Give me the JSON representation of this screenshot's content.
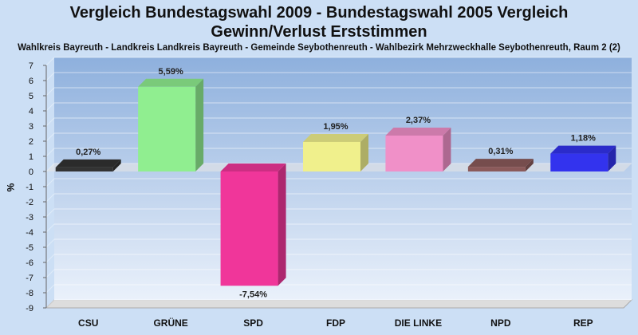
{
  "header": {
    "title_line1": "Vergleich Bundestagswahl 2009 - Bundestagswahl 2005 Vergleich",
    "title_line2": "Gewinn/Verlust Erststimmen",
    "subtitle": "Wahlkreis Bayreuth - Landkreis Landkreis Bayreuth - Gemeinde Seybothenreuth - Wahlbezirk Mehrzweckhalle Seybothenreuth, Raum 2 (2)"
  },
  "chart_data": {
    "type": "bar",
    "title": "Vergleich Bundestagswahl 2009 - Bundestagswahl 2005 Vergleich Gewinn/Verlust Erststimmen",
    "ylabel": "%",
    "xlabel": "",
    "ylim": [
      -9,
      7
    ],
    "yticks": [
      7,
      6,
      5,
      4,
      3,
      2,
      1,
      0,
      -1,
      -2,
      -3,
      -4,
      -5,
      -6,
      -7,
      -8,
      -9
    ],
    "categories": [
      "CSU",
      "GRÜNE",
      "SPD",
      "FDP",
      "DIE LINKE",
      "NPD",
      "REP"
    ],
    "values": [
      0.27,
      5.59,
      -7.54,
      1.95,
      2.37,
      0.31,
      1.18
    ],
    "value_labels": [
      "0,27%",
      "5,59%",
      "-7,54%",
      "1,95%",
      "2,37%",
      "0,31%",
      "1,18%"
    ],
    "colors": [
      "#333333",
      "#90ee90",
      "#f0369a",
      "#f0f08c",
      "#f090c8",
      "#8b5a5a",
      "#3333ee"
    ],
    "grid": true,
    "style": "3d"
  }
}
